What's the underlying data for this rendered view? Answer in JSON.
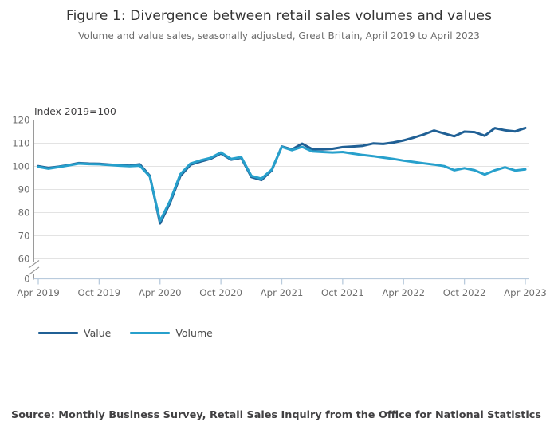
{
  "header": {
    "title": "Figure 1: Divergence between retail sales volumes and values",
    "subtitle": "Volume and value sales, seasonally adjusted, Great Britain, April 2019 to April 2023"
  },
  "chart_data": {
    "type": "line",
    "title": "Figure 1: Divergence between retail sales volumes and values",
    "subtitle": "Volume and value sales, seasonally adjusted, Great Britain, April 2019 to April 2023",
    "axis_unit_label": "Index 2019=100",
    "grid": true,
    "legend_position": "bottom-left",
    "y_axis_break": true,
    "ylim_visible": [
      60,
      120
    ],
    "y_ticks": [
      120,
      110,
      100,
      90,
      80,
      70,
      60
    ],
    "y_baseline_label": "0",
    "x_tick_labels": [
      "Apr 2019",
      "Oct 2019",
      "Apr 2020",
      "Oct 2020",
      "Apr 2021",
      "Oct 2021",
      "Apr 2022",
      "Oct 2022",
      "Apr 2023"
    ],
    "x": [
      "Apr 2019",
      "May 2019",
      "Jun 2019",
      "Jul 2019",
      "Aug 2019",
      "Sep 2019",
      "Oct 2019",
      "Nov 2019",
      "Dec 2019",
      "Jan 2020",
      "Feb 2020",
      "Mar 2020",
      "Apr 2020",
      "May 2020",
      "Jun 2020",
      "Jul 2020",
      "Aug 2020",
      "Sep 2020",
      "Oct 2020",
      "Nov 2020",
      "Dec 2020",
      "Jan 2021",
      "Feb 2021",
      "Mar 2021",
      "Apr 2021",
      "May 2021",
      "Jun 2021",
      "Jul 2021",
      "Aug 2021",
      "Sep 2021",
      "Oct 2021",
      "Nov 2021",
      "Dec 2021",
      "Jan 2022",
      "Feb 2022",
      "Mar 2022",
      "Apr 2022",
      "May 2022",
      "Jun 2022",
      "Jul 2022",
      "Aug 2022",
      "Sep 2022",
      "Oct 2022",
      "Nov 2022",
      "Dec 2022",
      "Jan 2023",
      "Feb 2023",
      "Mar 2023",
      "Apr 2023"
    ],
    "series": [
      {
        "name": "Value",
        "color": "#206095",
        "values": [
          100.1,
          99.3,
          99.9,
          100.6,
          101.4,
          101.2,
          101.1,
          100.8,
          100.5,
          100.3,
          100.9,
          95.9,
          75.3,
          84.3,
          95.8,
          100.7,
          102.1,
          103.3,
          105.6,
          102.9,
          103.7,
          95.4,
          94.1,
          98.2,
          108.6,
          107.3,
          109.8,
          107.4,
          107.3,
          107.6,
          108.3,
          108.6,
          108.9,
          109.9,
          109.7,
          110.3,
          111.2,
          112.4,
          113.8,
          115.5,
          114.2,
          113.0,
          115.0,
          114.8,
          113.2,
          116.5,
          115.6,
          115.1,
          116.6
        ]
      },
      {
        "name": "Volume",
        "color": "#27a0cc",
        "values": [
          99.8,
          99.0,
          99.7,
          100.4,
          101.2,
          101.0,
          100.9,
          100.6,
          100.3,
          100.1,
          100.3,
          95.6,
          76.4,
          85.2,
          96.6,
          101.2,
          102.6,
          103.7,
          106.0,
          103.2,
          104.0,
          95.9,
          94.7,
          98.6,
          108.4,
          107.0,
          108.4,
          106.5,
          106.2,
          106.0,
          106.2,
          105.5,
          104.9,
          104.4,
          103.8,
          103.2,
          102.5,
          101.9,
          101.3,
          100.8,
          100.1,
          98.3,
          99.2,
          98.3,
          96.5,
          98.3,
          99.6,
          98.2,
          98.7
        ]
      }
    ],
    "colors": {
      "gridline": "#e3e3e3",
      "y_axis": "#9a9a9a",
      "x_axis": "#b9cbdd",
      "tick_text": "#6e6e6e",
      "unit_label_text": "#414042"
    }
  },
  "legend": {
    "items": [
      {
        "label": "Value",
        "color": "#206095"
      },
      {
        "label": "Volume",
        "color": "#27a0cc"
      }
    ]
  },
  "source": "Source: Monthly Business Survey, Retail Sales Inquiry from the Office for National Statistics"
}
